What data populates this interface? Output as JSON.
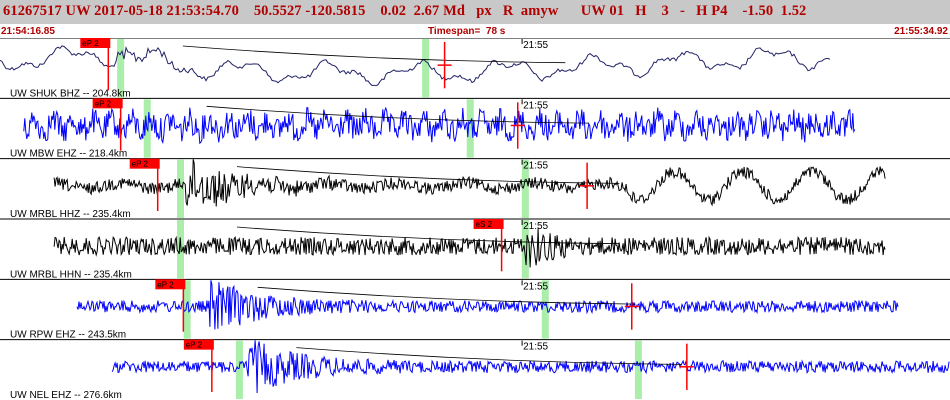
{
  "header": {
    "title": "61267517 UW 2017-05-18 21:53:54.70    50.5527 -120.5815    0.02  2.67 Md   px   R  amyw      UW 01   H    3   -   H P4    -1.50  1.52",
    "start_time": "21:54:16.85",
    "end_time": "21:55:34.92",
    "timespan_label": "Timespan=",
    "timespan_value": "78 s"
  },
  "colors": {
    "header_bg": "#c8c8c8",
    "header_text": "#b00000",
    "pick_red": "#ff0000",
    "arrival_green": "#aaeeaa",
    "wave_navy": "#222266",
    "wave_blue": "#0000ff",
    "wave_black": "#000000"
  },
  "traces": [
    {
      "label": "UW SHUK BHZ -- 204.8km",
      "time_mark": "21:55",
      "pick": "eP 2",
      "color": "wave_navy",
      "style": "low",
      "window_start": 0.0,
      "window_end": 0.875,
      "pick_time": 0.114,
      "green_marks": [
        0.127,
        0.448
      ],
      "red_marks": [
        0.468
      ],
      "burst_time": 0.12
    },
    {
      "label": "UW MBW EHZ -- 218.4km",
      "time_mark": "21:55",
      "pick": "eP 2",
      "color": "wave_blue",
      "style": "noise",
      "window_start": 0.025,
      "window_end": 0.9,
      "pick_time": 0.127,
      "green_marks": [
        0.155,
        0.495
      ],
      "red_marks": [
        0.545
      ],
      "burst_time": 0.155
    },
    {
      "label": "UW MRBL HHZ -- 235.4km",
      "time_mark": "21:55",
      "pick": "eP 2",
      "color": "wave_black",
      "style": "quake",
      "window_start": 0.057,
      "window_end": 0.932,
      "pick_time": 0.166,
      "green_marks": [
        0.19,
        0.553
      ],
      "red_marks": [
        0.618
      ],
      "burst_time": 0.2
    },
    {
      "label": "UW MRBL HHN -- 235.4km",
      "time_mark": "21:55",
      "pick": "eS 2",
      "color": "wave_black",
      "style": "noise2",
      "window_start": 0.057,
      "window_end": 0.932,
      "pick_time": 0.528,
      "green_marks": [
        0.19,
        0.553
      ],
      "red_marks": [],
      "burst_time": 0.553
    },
    {
      "label": "UW RPW EHZ -- 243.5km",
      "time_mark": "21:55",
      "pick": "eP 2",
      "color": "wave_blue",
      "style": "quake",
      "window_start": 0.081,
      "window_end": 0.946,
      "pick_time": 0.193,
      "green_marks": [
        0.197,
        0.574
      ],
      "red_marks": [
        0.665
      ],
      "burst_time": 0.225
    },
    {
      "label": "UW NEL EHZ -- 276.6km",
      "time_mark": "21:55",
      "pick": "eP 2",
      "color": "wave_blue",
      "style": "quake",
      "window_start": 0.118,
      "window_end": 1.0,
      "pick_time": 0.223,
      "green_marks": [
        0.252,
        0.672
      ],
      "red_marks": [
        0.723
      ],
      "burst_time": 0.265
    }
  ]
}
